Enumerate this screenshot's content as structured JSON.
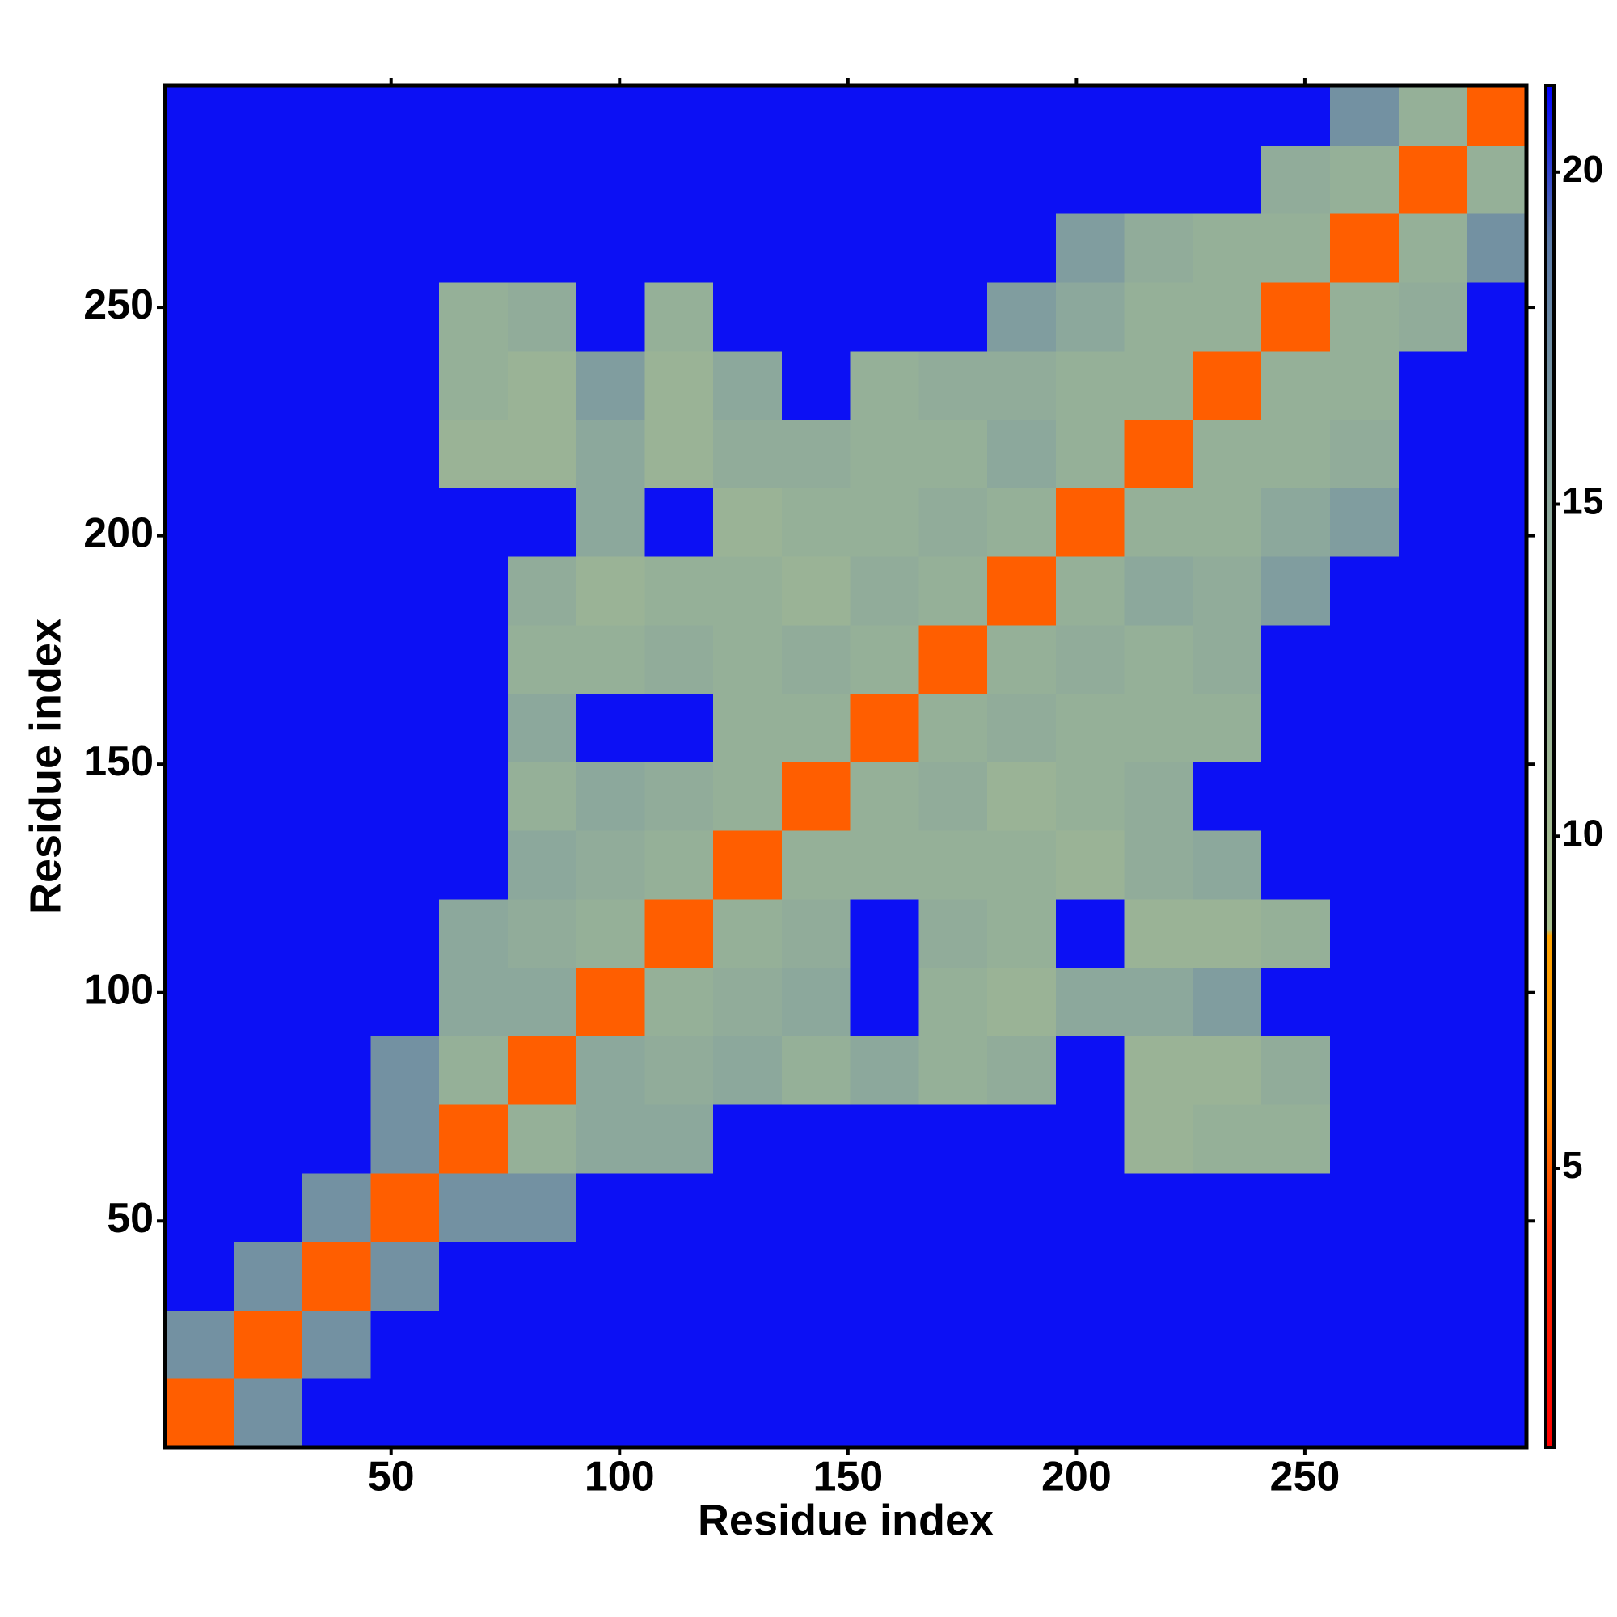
{
  "chart_data": {
    "type": "heatmap",
    "xlabel": "Residue index",
    "ylabel": "Residue index",
    "bins": [
      0.5,
      15.5,
      30.5,
      45.5,
      60.5,
      75.5,
      90.5,
      105.5,
      120.5,
      135.5,
      150.5,
      165.5,
      180.5,
      195.5,
      210.5,
      225.5,
      240.5,
      255.5,
      270.5,
      285.5,
      298.5
    ],
    "values": [
      [
        5,
        17,
        21,
        21,
        21,
        21,
        21,
        21,
        21,
        21,
        21,
        21,
        21,
        21,
        21,
        21,
        21,
        21,
        21,
        21
      ],
      [
        17,
        5,
        17,
        21,
        21,
        21,
        21,
        21,
        21,
        21,
        21,
        21,
        21,
        21,
        21,
        21,
        21,
        21,
        21,
        21
      ],
      [
        21,
        17,
        5,
        17,
        21,
        21,
        21,
        21,
        21,
        21,
        21,
        21,
        21,
        21,
        21,
        21,
        21,
        21,
        21,
        21
      ],
      [
        21,
        21,
        17,
        5,
        17,
        17,
        21,
        21,
        21,
        21,
        21,
        21,
        21,
        21,
        21,
        21,
        21,
        21,
        21,
        21
      ],
      [
        21,
        21,
        21,
        17,
        5,
        13,
        15,
        15,
        21,
        21,
        21,
        21,
        21,
        21,
        12,
        13,
        13,
        21,
        21,
        21
      ],
      [
        21,
        21,
        21,
        17,
        13,
        5,
        15,
        14,
        15,
        13,
        15,
        13,
        14,
        21,
        12,
        12,
        14,
        21,
        21,
        21
      ],
      [
        21,
        21,
        21,
        21,
        15,
        15,
        5,
        13,
        14,
        15,
        21,
        13,
        12,
        15,
        15,
        16,
        21,
        21,
        21,
        21
      ],
      [
        21,
        21,
        21,
        21,
        15,
        14,
        13,
        5,
        13,
        14,
        21,
        14,
        13,
        21,
        12,
        12,
        13,
        21,
        21,
        21
      ],
      [
        21,
        21,
        21,
        21,
        21,
        15,
        14,
        13,
        5,
        13,
        13,
        13,
        13,
        12,
        14,
        15,
        21,
        21,
        21,
        21
      ],
      [
        21,
        21,
        21,
        21,
        21,
        13,
        15,
        14,
        13,
        5,
        13,
        14,
        12,
        13,
        14,
        21,
        21,
        21,
        21,
        21
      ],
      [
        21,
        21,
        21,
        21,
        21,
        15,
        21,
        21,
        13,
        13,
        5,
        13,
        14,
        13,
        13,
        13,
        21,
        21,
        21,
        21
      ],
      [
        21,
        21,
        21,
        21,
        21,
        13,
        13,
        14,
        13,
        14,
        13,
        5,
        13,
        14,
        13,
        14,
        21,
        21,
        21,
        21
      ],
      [
        21,
        21,
        21,
        21,
        21,
        14,
        12,
        13,
        13,
        12,
        14,
        13,
        5,
        13,
        15,
        14,
        16,
        21,
        21,
        21
      ],
      [
        21,
        21,
        21,
        21,
        21,
        21,
        15,
        21,
        12,
        13,
        13,
        14,
        13,
        5,
        13,
        13,
        15,
        16,
        21,
        21
      ],
      [
        21,
        21,
        21,
        21,
        12,
        12,
        15,
        12,
        14,
        14,
        13,
        13,
        15,
        13,
        5,
        13,
        13,
        14,
        21,
        21
      ],
      [
        21,
        21,
        21,
        21,
        13,
        12,
        16,
        12,
        15,
        21,
        13,
        14,
        14,
        13,
        13,
        5,
        13,
        13,
        21,
        21
      ],
      [
        21,
        21,
        21,
        21,
        13,
        14,
        21,
        13,
        21,
        21,
        21,
        21,
        16,
        15,
        13,
        13,
        5,
        13,
        14,
        21
      ],
      [
        21,
        21,
        21,
        21,
        21,
        21,
        21,
        21,
        21,
        21,
        21,
        21,
        21,
        16,
        14,
        13,
        13,
        5,
        13,
        17
      ],
      [
        21,
        21,
        21,
        21,
        21,
        21,
        21,
        21,
        21,
        21,
        21,
        21,
        21,
        21,
        21,
        21,
        14,
        13,
        5,
        13
      ],
      [
        21,
        21,
        21,
        21,
        21,
        21,
        21,
        21,
        21,
        21,
        21,
        21,
        21,
        21,
        21,
        21,
        21,
        17,
        13,
        5
      ]
    ],
    "xlim": [
      0.5,
      298.5
    ],
    "ylim": [
      0.5,
      298.5
    ],
    "xticks": [
      50,
      100,
      150,
      200,
      250
    ],
    "yticks": [
      50,
      100,
      150,
      200,
      250
    ],
    "clim": [
      0.8,
      21.3
    ],
    "cticks": [
      5,
      10,
      15,
      20
    ],
    "colorscale": [
      [
        0.8,
        "#ff0000"
      ],
      [
        4,
        "#ff3000"
      ],
      [
        6,
        "#ff8c00"
      ],
      [
        8.5,
        "#ffa500"
      ],
      [
        8.6,
        "#a9c08f"
      ],
      [
        15,
        "#8ca89c"
      ],
      [
        19,
        "#5a7aa8"
      ],
      [
        21.3,
        "#0000ff"
      ]
    ]
  }
}
